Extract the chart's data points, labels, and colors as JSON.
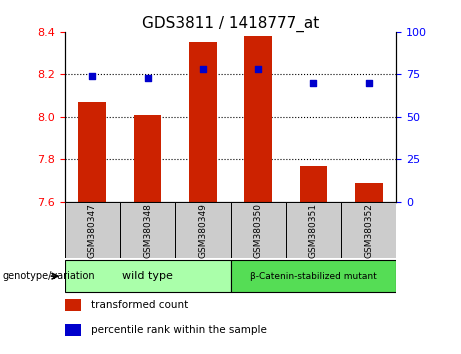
{
  "title": "GDS3811 / 1418777_at",
  "categories": [
    "GSM380347",
    "GSM380348",
    "GSM380349",
    "GSM380350",
    "GSM380351",
    "GSM380352"
  ],
  "bar_values": [
    8.07,
    8.01,
    8.35,
    8.38,
    7.77,
    7.69
  ],
  "bar_baseline": 7.6,
  "percentile_values": [
    74,
    73,
    78,
    78,
    70,
    70
  ],
  "bar_color": "#CC2200",
  "dot_color": "#0000CC",
  "ylim_left": [
    7.6,
    8.4
  ],
  "ylim_right": [
    0,
    100
  ],
  "yticks_left": [
    7.6,
    7.8,
    8.0,
    8.2,
    8.4
  ],
  "yticks_right": [
    0,
    25,
    50,
    75,
    100
  ],
  "grid_values": [
    7.8,
    8.0,
    8.2
  ],
  "group1_label": "wild type",
  "group2_label": "β-Catenin-stabilized mutant",
  "group1_color": "#aaffaa",
  "group2_color": "#55dd55",
  "group_label": "genotype/variation",
  "legend1": "transformed count",
  "legend2": "percentile rank within the sample",
  "bar_width": 0.5,
  "title_fontsize": 11,
  "tick_fontsize": 8,
  "label_fontsize": 7.5
}
